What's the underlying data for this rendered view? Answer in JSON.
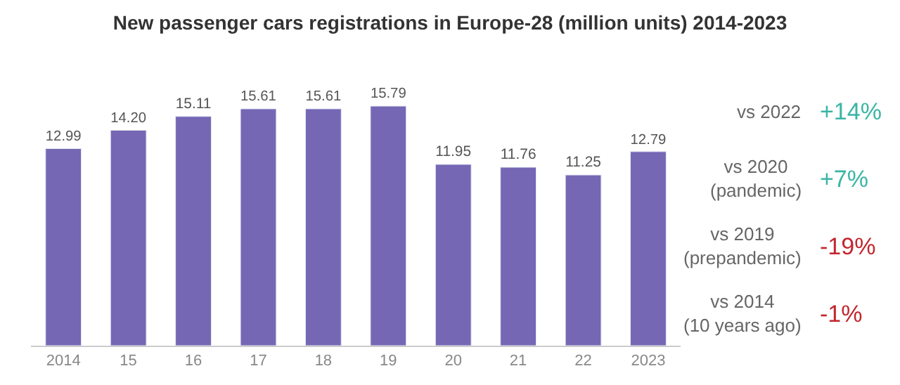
{
  "chart_data": {
    "type": "bar",
    "title": "New passenger cars registrations in Europe-28 (million units) 2014-2023",
    "categories": [
      "2014",
      "15",
      "16",
      "17",
      "18",
      "19",
      "20",
      "21",
      "22",
      "2023"
    ],
    "values": [
      12.99,
      14.2,
      15.11,
      15.61,
      15.61,
      15.79,
      11.95,
      11.76,
      11.25,
      12.79
    ],
    "color": "#7567b4",
    "value_labels": [
      "12.99",
      "14.20",
      "15.11",
      "15.61",
      "15.61",
      "15.79",
      "11.95",
      "11.76",
      "11.25",
      "12.79"
    ],
    "legend": false,
    "tick_labels": "x",
    "annotations": [
      "vs 2022",
      "+14%",
      "vs 2020\n(pandemic)",
      "+7%",
      "vs 2019\n(prepandemic)",
      "-19%",
      "vs 2014\n(10 years ago)",
      "-1%"
    ]
  }
}
